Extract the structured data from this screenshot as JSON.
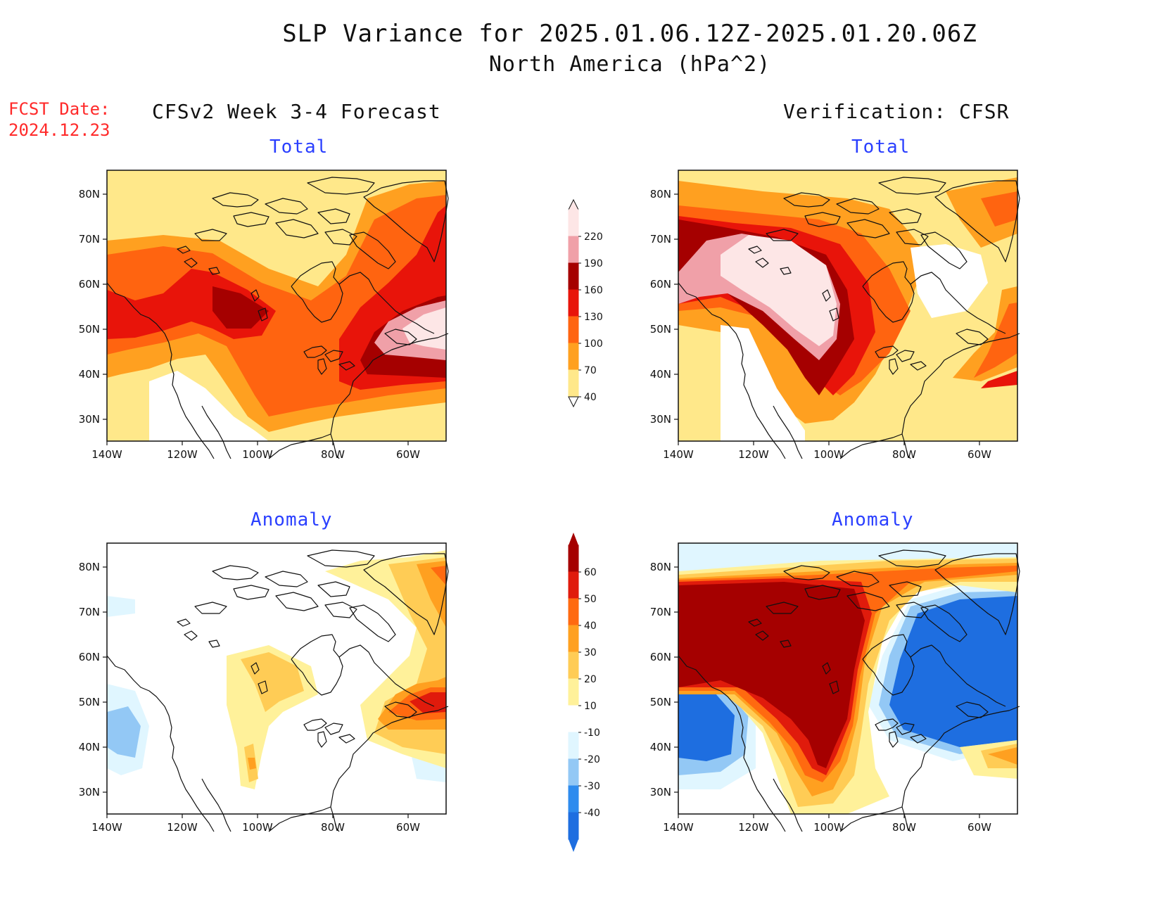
{
  "title": {
    "line1": "SLP Variance for 2025.01.06.12Z-2025.01.20.06Z",
    "line2": "North America (hPa^2)"
  },
  "forecast_date": {
    "label": "FCST Date:",
    "value": "2024.12.23"
  },
  "columns": {
    "left": "CFSv2 Week 3-4 Forecast",
    "right": "Verification: CFSR"
  },
  "panels": {
    "tl": "Total",
    "tr": "Total",
    "bl": "Anomaly",
    "br": "Anomaly"
  },
  "axes": {
    "lat_ticks": [
      "80N",
      "70N",
      "60N",
      "50N",
      "40N",
      "30N"
    ],
    "lon_ticks": [
      "140W",
      "120W",
      "100W",
      "80W",
      "60W"
    ]
  },
  "colorbars": {
    "total": {
      "labels": [
        "40",
        "70",
        "100",
        "130",
        "160",
        "190",
        "220"
      ],
      "colors": [
        "#ffe88a",
        "#ffa020",
        "#ff6410",
        "#e8140a",
        "#a50000",
        "#f0a0a8",
        "#fde6e6"
      ]
    },
    "anomaly": {
      "labels": [
        "-40",
        "-30",
        "-20",
        "-10",
        "10",
        "20",
        "30",
        "40",
        "50",
        "60"
      ],
      "colors": [
        "#1e6ee0",
        "#2d8bee",
        "#93c8f5",
        "#e0f6ff",
        "#ffffff",
        "#fff19a",
        "#ffcc55",
        "#ffa020",
        "#ff6a10",
        "#e01b0c",
        "#a50000"
      ]
    }
  }
}
